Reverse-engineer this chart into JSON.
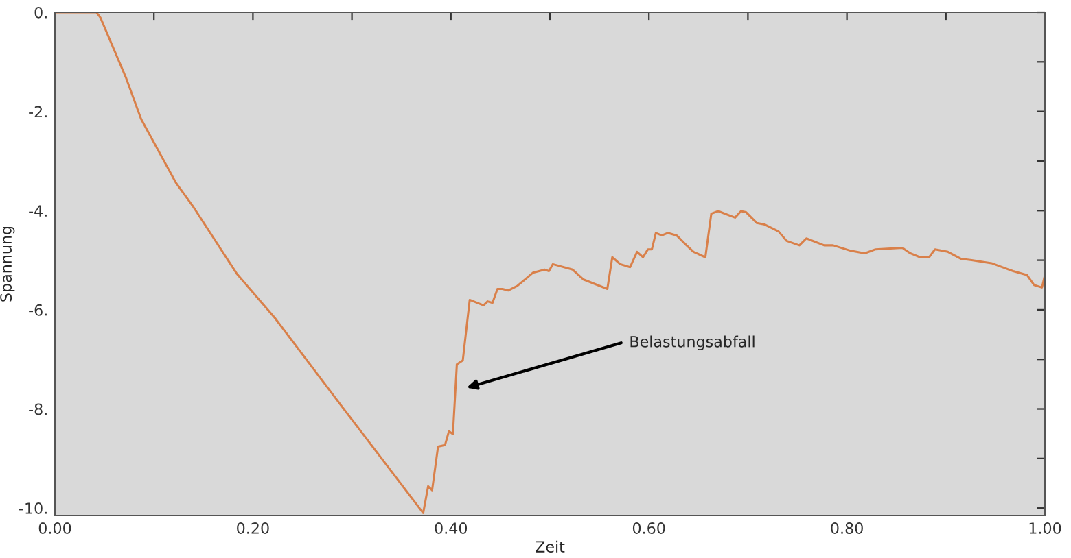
{
  "chart_data": {
    "type": "line",
    "xlabel": "Zeit",
    "ylabel": "Spannung",
    "xlim": [
      0,
      1
    ],
    "ylim": [
      -10.15,
      0
    ],
    "xticks": [
      {
        "value": 0,
        "label": "0.00"
      },
      {
        "value": 0.1,
        "label": null
      },
      {
        "value": 0.2,
        "label": "0.20"
      },
      {
        "value": 0.3,
        "label": null
      },
      {
        "value": 0.4,
        "label": "0.40"
      },
      {
        "value": 0.5,
        "label": null
      },
      {
        "value": 0.6,
        "label": "0.60"
      },
      {
        "value": 0.7,
        "label": null
      },
      {
        "value": 0.8,
        "label": "0.80"
      },
      {
        "value": 0.9,
        "label": null
      },
      {
        "value": 1,
        "label": "1.00"
      }
    ],
    "yticks": [
      {
        "value": -10,
        "label": "-10."
      },
      {
        "value": -9,
        "label": null
      },
      {
        "value": -8,
        "label": "-8."
      },
      {
        "value": -7,
        "label": null
      },
      {
        "value": -6,
        "label": "-6."
      },
      {
        "value": -5,
        "label": null
      },
      {
        "value": -4,
        "label": "-4."
      },
      {
        "value": -3,
        "label": null
      },
      {
        "value": -2,
        "label": "-2."
      },
      {
        "value": -1,
        "label": null
      },
      {
        "value": 0,
        "label": "0."
      }
    ],
    "grid": false,
    "legend": false,
    "marker": "none",
    "line_style": "solid",
    "annotations": [
      "Belastungsabfall"
    ],
    "series": [
      {
        "color": "#d9804a",
        "x": [
          0,
          0.042,
          0.046,
          0.072,
          0.087,
          0.122,
          0.139,
          0.184,
          0.222,
          0.291,
          0.372,
          0.377,
          0.381,
          0.387,
          0.394,
          0.398,
          0.402,
          0.406,
          0.412,
          0.419,
          0.433,
          0.437,
          0.442,
          0.447,
          0.452,
          0.458,
          0.467,
          0.483,
          0.495,
          0.499,
          0.503,
          0.523,
          0.534,
          0.548,
          0.558,
          0.563,
          0.571,
          0.581,
          0.588,
          0.594,
          0.599,
          0.603,
          0.607,
          0.613,
          0.619,
          0.628,
          0.638,
          0.645,
          0.657,
          0.663,
          0.67,
          0.687,
          0.693,
          0.698,
          0.709,
          0.717,
          0.731,
          0.739,
          0.752,
          0.759,
          0.777,
          0.786,
          0.804,
          0.818,
          0.829,
          0.856,
          0.864,
          0.874,
          0.883,
          0.889,
          0.902,
          0.915,
          0.926,
          0.946,
          0.961,
          0.968,
          0.982,
          0.989,
          0.997,
          1.0
        ],
        "values": [
          0,
          0,
          -0.11,
          -1.33,
          -2.15,
          -3.43,
          -3.9,
          -5.28,
          -6.16,
          -7.98,
          -10.1,
          -9.56,
          -9.64,
          -8.76,
          -8.73,
          -8.45,
          -8.51,
          -7.1,
          -7.02,
          -5.8,
          -5.91,
          -5.83,
          -5.86,
          -5.58,
          -5.58,
          -5.61,
          -5.52,
          -5.25,
          -5.19,
          -5.22,
          -5.08,
          -5.19,
          -5.39,
          -5.5,
          -5.58,
          -4.94,
          -5.08,
          -5.14,
          -4.83,
          -4.94,
          -4.78,
          -4.78,
          -4.45,
          -4.5,
          -4.45,
          -4.5,
          -4.7,
          -4.83,
          -4.94,
          -4.06,
          -4.01,
          -4.14,
          -4.01,
          -4.03,
          -4.25,
          -4.28,
          -4.42,
          -4.61,
          -4.7,
          -4.56,
          -4.7,
          -4.7,
          -4.81,
          -4.86,
          -4.78,
          -4.75,
          -4.86,
          -4.94,
          -4.94,
          -4.78,
          -4.83,
          -4.97,
          -5.0,
          -5.06,
          -5.17,
          -5.22,
          -5.3,
          -5.5,
          -5.55,
          -5.3
        ]
      }
    ]
  }
}
